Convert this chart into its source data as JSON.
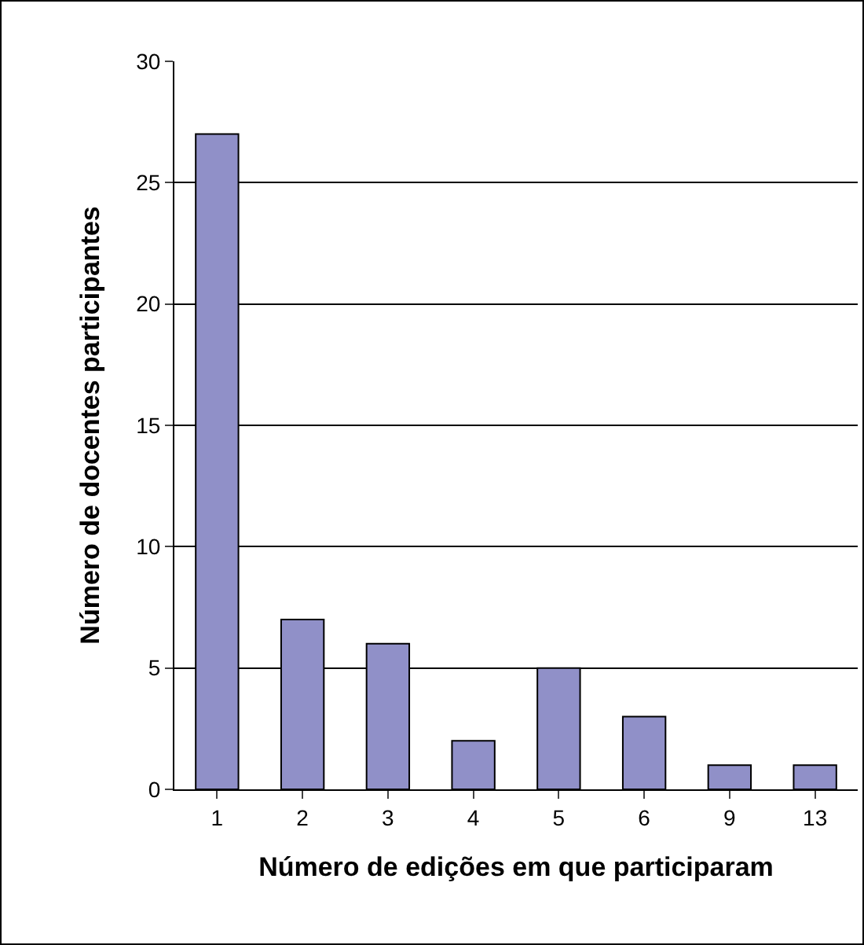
{
  "chart_data": {
    "type": "bar",
    "xlabel": "Número de edições em que participaram",
    "ylabel": "Número de docentes participantes",
    "categories": [
      "1",
      "2",
      "3",
      "4",
      "5",
      "6",
      "9",
      "13"
    ],
    "values": [
      27,
      7,
      6,
      2,
      5,
      3,
      1,
      1
    ],
    "color": "#9090c8",
    "ylim": [
      0,
      30
    ],
    "yticks": [
      0,
      5,
      10,
      15,
      20,
      25,
      30
    ],
    "grid": "y",
    "legend": false
  }
}
